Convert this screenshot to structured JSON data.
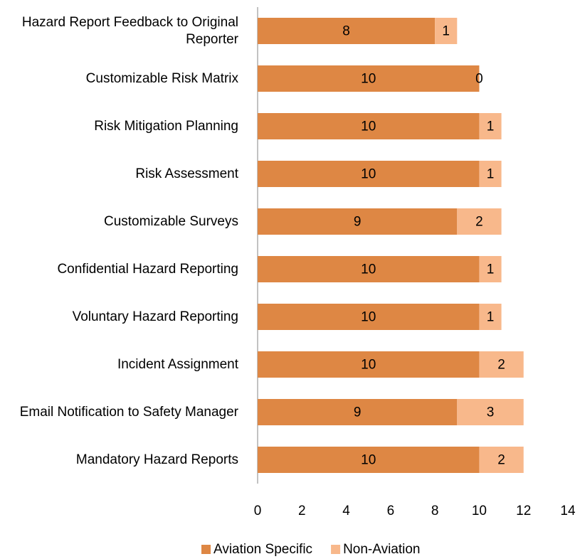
{
  "chart_data": {
    "type": "stacked_barh",
    "categories": [
      "Hazard Report Feedback to Original Reporter",
      "Customizable Risk Matrix",
      "Risk Mitigation Planning",
      "Risk Assessment",
      "Customizable Surveys",
      "Confidential Hazard Reporting",
      "Voluntary Hazard Reporting",
      "Incident Assignment",
      "Email Notification to Safety Manager",
      "Mandatory Hazard Reports"
    ],
    "series": [
      {
        "name": "Aviation Specific",
        "color": "#de8744",
        "values": [
          8,
          10,
          10,
          10,
          9,
          10,
          10,
          10,
          9,
          10
        ]
      },
      {
        "name": "Non-Aviation",
        "color": "#f8b88b",
        "values": [
          1,
          0,
          1,
          1,
          2,
          1,
          1,
          2,
          3,
          2
        ]
      }
    ],
    "xlim": [
      0,
      14
    ],
    "xticks": [
      0,
      2,
      4,
      6,
      8,
      10,
      12,
      14
    ],
    "legend": "bottom"
  }
}
